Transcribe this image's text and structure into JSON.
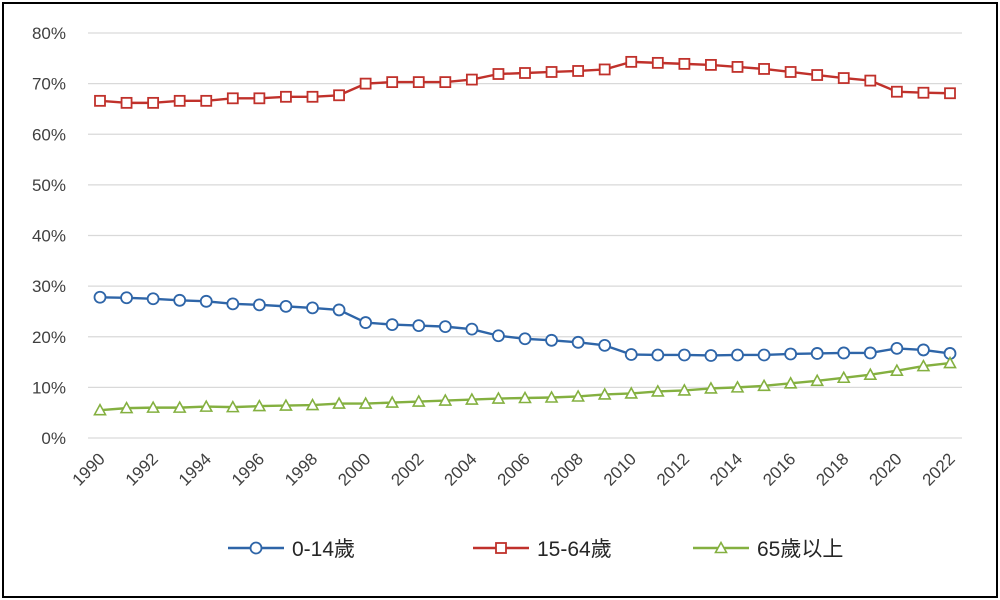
{
  "chart_data": {
    "type": "line",
    "title": "",
    "xlabel": "",
    "ylabel": "",
    "ylim": [
      0,
      80
    ],
    "y_ticks": [
      "0%",
      "10%",
      "20%",
      "30%",
      "40%",
      "50%",
      "60%",
      "70%",
      "80%"
    ],
    "x_tick_labels": [
      "1990",
      "1992",
      "1994",
      "1996",
      "1998",
      "2000",
      "2002",
      "2004",
      "2006",
      "2008",
      "2010",
      "2012",
      "2014",
      "2016",
      "2018",
      "2020",
      "2022"
    ],
    "grid": true,
    "legend_position": "bottom",
    "x": [
      1990,
      1991,
      1992,
      1993,
      1994,
      1995,
      1996,
      1997,
      1998,
      1999,
      2000,
      2001,
      2002,
      2003,
      2004,
      2005,
      2006,
      2007,
      2008,
      2009,
      2010,
      2011,
      2012,
      2013,
      2014,
      2015,
      2016,
      2017,
      2018,
      2019,
      2020,
      2021,
      2022
    ],
    "series": [
      {
        "name": "0-14歲",
        "color": "#2e65a8",
        "marker": "circle",
        "values": [
          27.8,
          27.7,
          27.5,
          27.2,
          27.0,
          26.5,
          26.3,
          26.0,
          25.7,
          25.3,
          22.8,
          22.4,
          22.2,
          22.0,
          21.5,
          20.2,
          19.6,
          19.3,
          18.9,
          18.3,
          16.5,
          16.4,
          16.4,
          16.3,
          16.4,
          16.4,
          16.6,
          16.7,
          16.8,
          16.8,
          17.7,
          17.4,
          16.7
        ]
      },
      {
        "name": "15-64歲",
        "color": "#c0312b",
        "marker": "square",
        "values": [
          66.6,
          66.2,
          66.2,
          66.6,
          66.6,
          67.1,
          67.1,
          67.4,
          67.4,
          67.7,
          70.0,
          70.3,
          70.3,
          70.3,
          70.8,
          71.9,
          72.1,
          72.3,
          72.5,
          72.8,
          74.3,
          74.1,
          73.9,
          73.7,
          73.3,
          72.9,
          72.3,
          71.7,
          71.1,
          70.6,
          68.4,
          68.2,
          68.1
        ]
      },
      {
        "name": "65歲以上",
        "color": "#84b040",
        "marker": "triangle",
        "values": [
          5.5,
          5.9,
          6.0,
          6.0,
          6.2,
          6.1,
          6.3,
          6.4,
          6.5,
          6.8,
          6.8,
          7.0,
          7.2,
          7.4,
          7.6,
          7.8,
          7.9,
          8.0,
          8.2,
          8.6,
          8.8,
          9.2,
          9.4,
          9.8,
          10.0,
          10.3,
          10.8,
          11.3,
          11.9,
          12.5,
          13.3,
          14.2,
          14.8
        ]
      }
    ]
  }
}
